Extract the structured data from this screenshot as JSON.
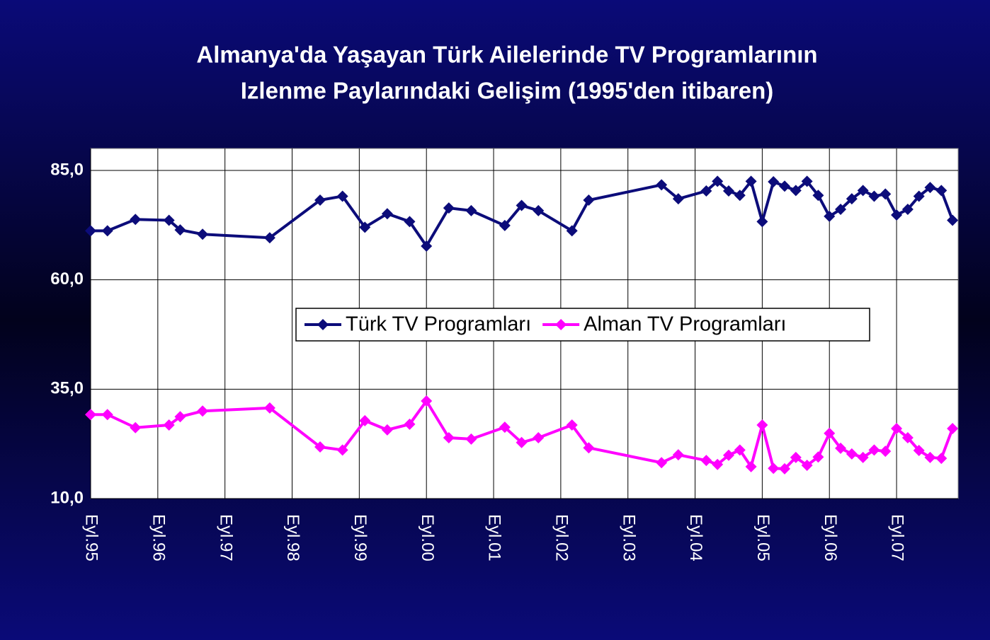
{
  "chart_data": {
    "type": "line",
    "title": [
      "Almanya'da Yaşayan Türk Ailelerinde TV Programlarının",
      "Izlenme Paylarındaki Gelişim (1995'den itibaren)"
    ],
    "x": [
      0,
      3,
      8,
      14,
      16,
      20,
      32,
      41,
      45,
      49,
      53,
      57,
      60,
      64,
      68,
      74,
      77,
      80,
      86,
      89,
      102,
      105,
      110,
      112,
      114,
      116,
      118,
      120,
      122,
      124,
      126,
      128,
      130,
      132,
      134,
      136,
      138,
      140,
      142,
      144,
      146,
      148,
      150,
      152,
      154
    ],
    "series": [
      {
        "name": "Türk TV Programları",
        "color": "#0c0c7a",
        "values": [
          71.2,
          71.2,
          73.8,
          73.6,
          71.4,
          70.4,
          69.6,
          78.2,
          79.1,
          72.0,
          75.1,
          73.3,
          67.7,
          76.4,
          75.8,
          72.4,
          77.0,
          75.8,
          71.2,
          78.2,
          81.7,
          78.5,
          80.3,
          82.5,
          80.3,
          79.3,
          82.5,
          73.3,
          82.4,
          81.4,
          80.4,
          82.5,
          79.3,
          74.5,
          76.1,
          78.5,
          80.4,
          79.1,
          79.6,
          74.8,
          76.1,
          79.1,
          81.1,
          80.4,
          73.6
        ]
      },
      {
        "name": "Alman TV Programları",
        "color": "#ff00ff",
        "values": [
          29.2,
          29.2,
          26.2,
          26.8,
          28.7,
          30.0,
          30.7,
          21.8,
          21.1,
          27.8,
          25.7,
          27.0,
          32.3,
          23.9,
          23.6,
          26.3,
          22.8,
          23.9,
          26.8,
          21.6,
          18.2,
          20.0,
          18.7,
          17.8,
          19.9,
          21.1,
          17.3,
          26.8,
          16.9,
          16.8,
          19.4,
          17.6,
          19.5,
          24.9,
          21.5,
          20.2,
          19.4,
          21.1,
          20.8,
          26.0,
          23.9,
          21.0,
          19.4,
          19.2,
          26.0
        ]
      }
    ],
    "xlim": [
      0,
      155
    ],
    "xticks": [
      {
        "value": 0,
        "label": "Eyl.95"
      },
      {
        "value": 12,
        "label": "Eyl.96"
      },
      {
        "value": 24,
        "label": "Eyl.97"
      },
      {
        "value": 36,
        "label": "Eyl.98"
      },
      {
        "value": 48,
        "label": "Eyl.99"
      },
      {
        "value": 60,
        "label": "Eyl.00"
      },
      {
        "value": 72,
        "label": "Eyl.01"
      },
      {
        "value": 84,
        "label": "Eyl.02"
      },
      {
        "value": 96,
        "label": "Eyl.03"
      },
      {
        "value": 108,
        "label": "Eyl.04"
      },
      {
        "value": 120,
        "label": "Eyl.05"
      },
      {
        "value": 132,
        "label": "Eyl.06"
      },
      {
        "value": 144,
        "label": "Eyl.07"
      }
    ],
    "ylim": [
      10,
      90
    ],
    "yticks": [
      {
        "value": 10,
        "label": "10,0"
      },
      {
        "value": 35,
        "label": "35,0"
      },
      {
        "value": 60,
        "label": "60,0"
      },
      {
        "value": 85,
        "label": "85,0"
      }
    ],
    "grid": true,
    "legend": "center"
  }
}
